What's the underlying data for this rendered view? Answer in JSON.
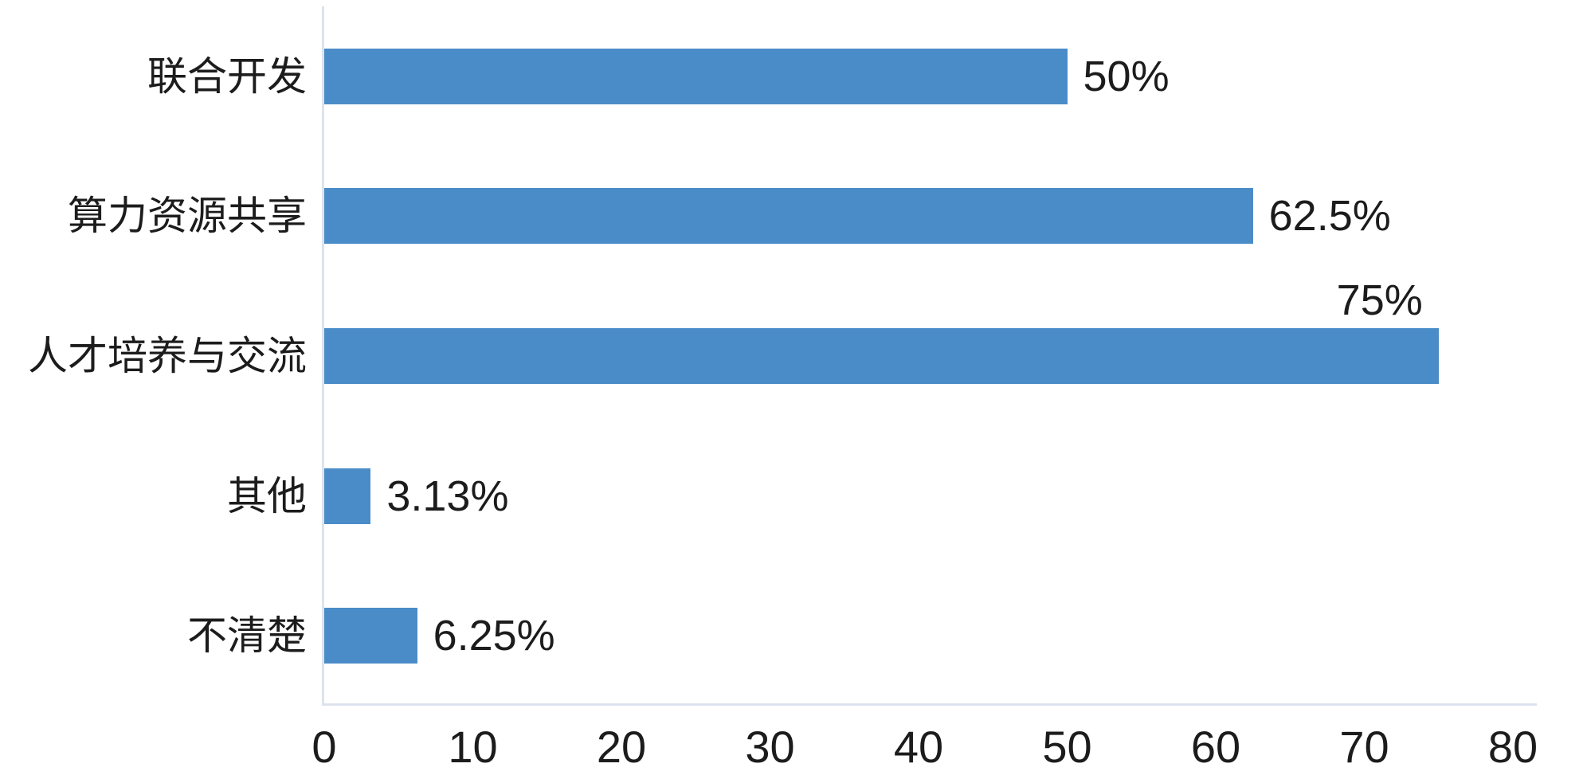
{
  "chart_data": {
    "type": "bar",
    "orientation": "horizontal",
    "categories": [
      "联合开发",
      "算力资源共享",
      "人才培养与交流",
      "其他",
      "不清楚"
    ],
    "values": [
      50,
      62.5,
      75,
      3.13,
      6.25
    ],
    "value_labels": [
      "50%",
      "62.5%",
      "75%",
      "3.13%",
      "6.25%"
    ],
    "x_ticks": [
      "0",
      "10",
      "20",
      "30",
      "40",
      "50",
      "60",
      "70",
      "80"
    ],
    "xlim": [
      0,
      80
    ],
    "xlabel": "",
    "ylabel": "",
    "grid": false,
    "legend": false,
    "bar_color": "#4A8CC8",
    "axis_color": "#DDE3EE",
    "text_color": "#1C1C1C"
  }
}
